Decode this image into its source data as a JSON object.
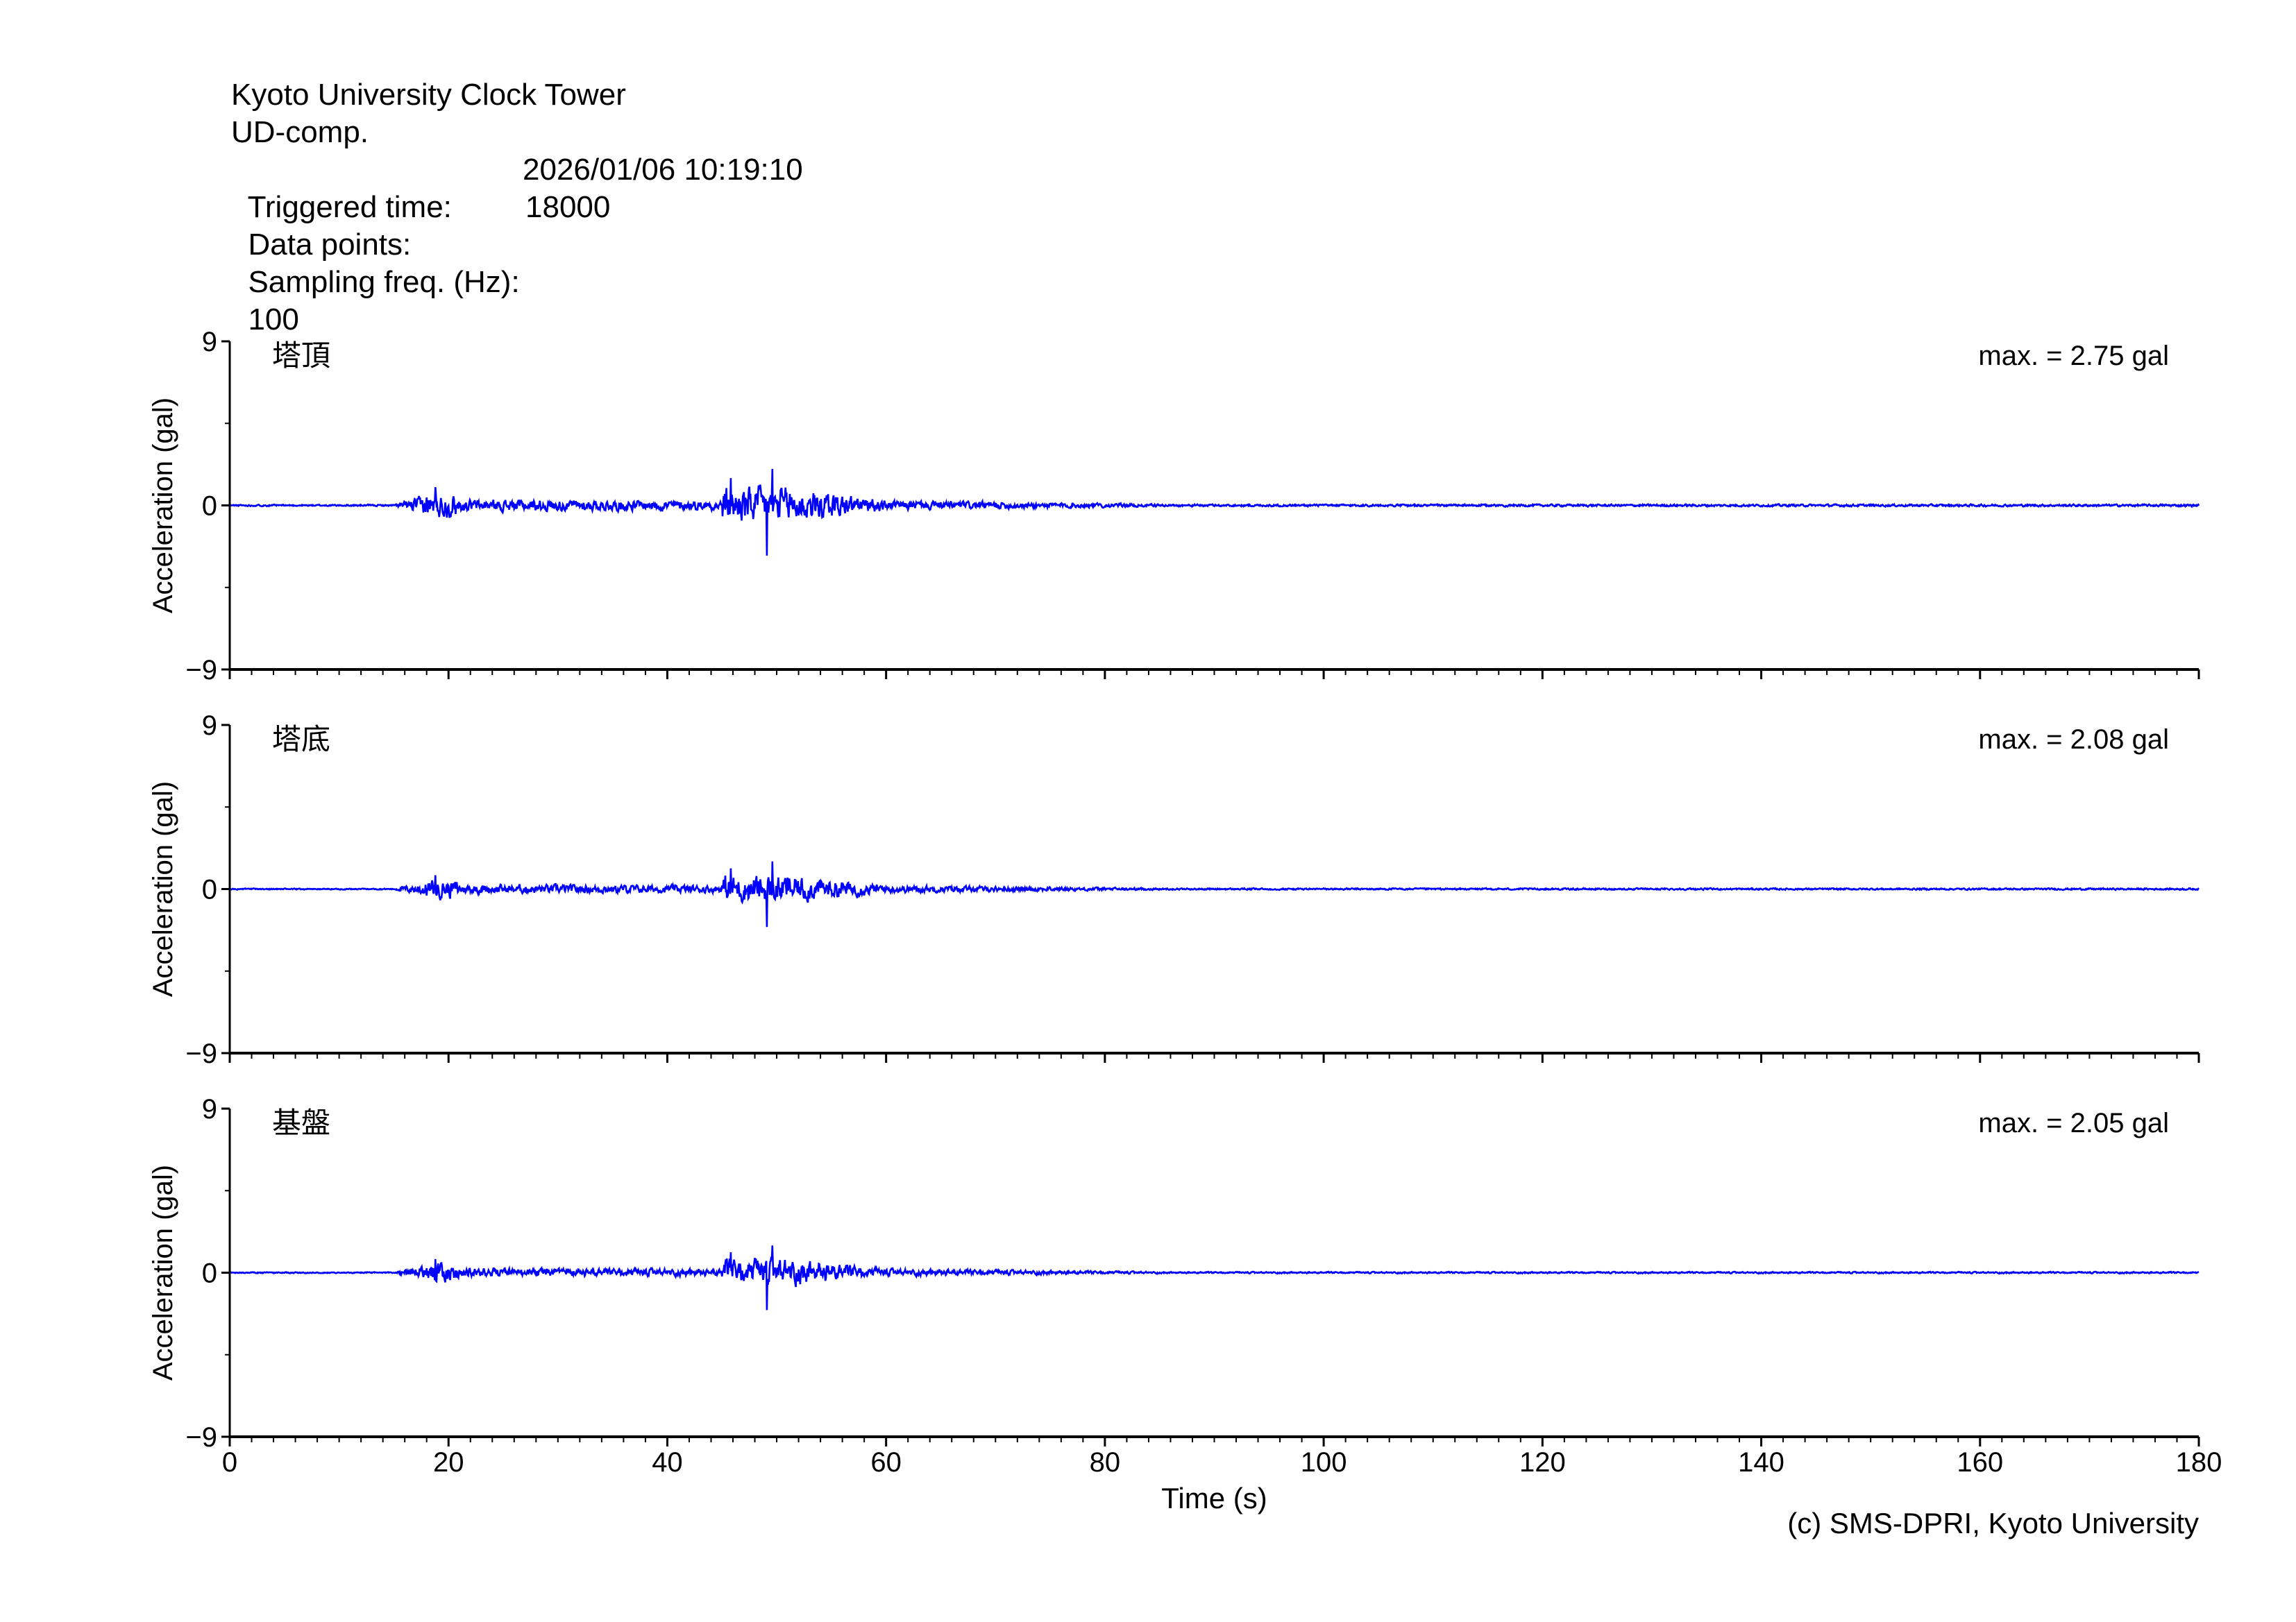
{
  "header": {
    "station": "Kyoto University Clock Tower",
    "component": "UD-comp.",
    "triggered_label": "Triggered time:",
    "triggered_value": "2026/01/06 10:19:10",
    "points_label": "Data points:",
    "points_value": "18000",
    "freq_label": "Sampling freq. (Hz):",
    "freq_value": "100"
  },
  "footer": {
    "copyright": "(c) SMS-DPRI, Kyoto University"
  },
  "chart_data": {
    "type": "line",
    "xlabel": "Time (s)",
    "ylabel": "Acceleration (gal)",
    "xlim": [
      0,
      180
    ],
    "ylim": [
      -9,
      9
    ],
    "xticks": [
      "0",
      "20",
      "40",
      "60",
      "80",
      "100",
      "120",
      "140",
      "160",
      "180"
    ],
    "yticks": [
      "9",
      "0",
      "−9"
    ],
    "line_color": "#0000ff",
    "sampling_hz": 100,
    "series": [
      {
        "name": "塔頂",
        "max_label": "max. = 2.75 gal",
        "max": 2.75,
        "seed": 11
      },
      {
        "name": "塔底",
        "max_label": "max. = 2.08 gal",
        "max": 2.08,
        "seed": 23
      },
      {
        "name": "基盤",
        "max_label": "max. = 2.05 gal",
        "max": 2.05,
        "seed": 37
      }
    ]
  }
}
